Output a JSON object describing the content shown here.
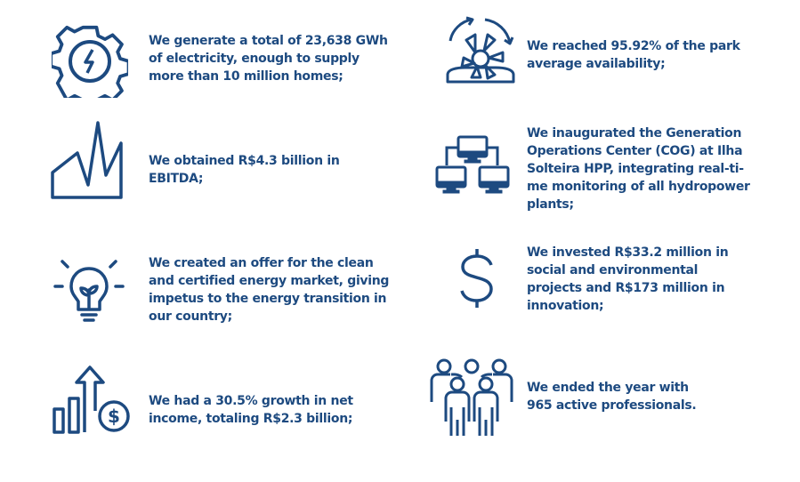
{
  "accent_color": "#1d4a80",
  "left": [
    {
      "icon": "gear-lightning-icon",
      "lines": [
        "We generate a total of 23,638 GWh",
        "of electricity, enough to supply",
        "more than 10 million homes;"
      ]
    },
    {
      "icon": "peak-chart-icon",
      "lines": [
        "We obtained R$4.3 billion in",
        "EBITDA;"
      ]
    },
    {
      "icon": "lightbulb-plant-icon",
      "lines": [
        "We created an offer for the clean",
        "and certified energy market, giving",
        "impetus to the energy transition in",
        "our country;"
      ]
    },
    {
      "icon": "growth-dollar-icon",
      "lines": [
        "We had a 30.5% growth in net",
        "income, totaling R$2.3 billion;"
      ]
    }
  ],
  "right": [
    {
      "icon": "turbine-cycle-icon",
      "lines": [
        "We reached 95.92% of the park",
        "average availability;"
      ]
    },
    {
      "icon": "network-computers-icon",
      "lines": [
        "We inaugurated the Generation",
        "Operations Center (COG) at Ilha",
        "Solteira HPP, integrating real-ti-",
        "me monitoring of all hydropower",
        "plants;"
      ]
    },
    {
      "icon": "dollar-sign-icon",
      "lines": [
        "We invested R$33.2 million in",
        "social and environmental",
        "projects and R$173 million in",
        "innovation;"
      ]
    },
    {
      "icon": "people-group-icon",
      "lines": [
        "We ended the year with",
        "965 active professionals."
      ]
    }
  ]
}
